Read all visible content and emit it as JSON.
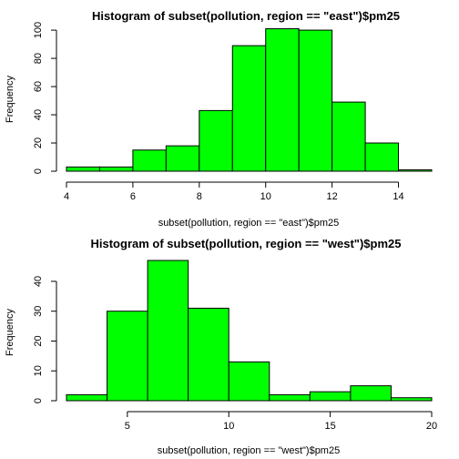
{
  "chart_data": [
    {
      "type": "bar",
      "title": "Histogram of subset(pollution, region == \"east\")$pm25",
      "xlabel": "subset(pollution, region == \"east\")$pm25",
      "ylabel": "Frequency",
      "bar_color": "#00ff00",
      "xlim": [
        4,
        15
      ],
      "ylim": [
        0,
        102
      ],
      "xticks": [
        4,
        6,
        8,
        10,
        12,
        14
      ],
      "yticks": [
        0,
        20,
        40,
        60,
        80,
        100
      ],
      "bins": [
        {
          "x0": 4,
          "x1": 5,
          "count": 3
        },
        {
          "x0": 5,
          "x1": 6,
          "count": 3
        },
        {
          "x0": 6,
          "x1": 7,
          "count": 15
        },
        {
          "x0": 7,
          "x1": 8,
          "count": 18
        },
        {
          "x0": 8,
          "x1": 9,
          "count": 43
        },
        {
          "x0": 9,
          "x1": 10,
          "count": 89
        },
        {
          "x0": 10,
          "x1": 11,
          "count": 101
        },
        {
          "x0": 11,
          "x1": 12,
          "count": 100
        },
        {
          "x0": 12,
          "x1": 13,
          "count": 49
        },
        {
          "x0": 13,
          "x1": 14,
          "count": 20
        },
        {
          "x0": 14,
          "x1": 15,
          "count": 1
        }
      ]
    },
    {
      "type": "bar",
      "title": "Histogram of subset(pollution, region == \"west\")$pm25",
      "xlabel": "subset(pollution, region == \"west\")$pm25",
      "ylabel": "Frequency",
      "bar_color": "#00ff00",
      "xlim": [
        2,
        20
      ],
      "ylim": [
        0,
        47
      ],
      "xticks": [
        5,
        10,
        15,
        20
      ],
      "yticks": [
        0,
        10,
        20,
        30,
        40
      ],
      "bins": [
        {
          "x0": 2,
          "x1": 4,
          "count": 2
        },
        {
          "x0": 4,
          "x1": 6,
          "count": 30
        },
        {
          "x0": 6,
          "x1": 8,
          "count": 47
        },
        {
          "x0": 8,
          "x1": 10,
          "count": 31
        },
        {
          "x0": 10,
          "x1": 12,
          "count": 13
        },
        {
          "x0": 12,
          "x1": 14,
          "count": 2
        },
        {
          "x0": 14,
          "x1": 16,
          "count": 3
        },
        {
          "x0": 16,
          "x1": 18,
          "count": 5
        },
        {
          "x0": 18,
          "x1": 20,
          "count": 1
        }
      ]
    }
  ]
}
